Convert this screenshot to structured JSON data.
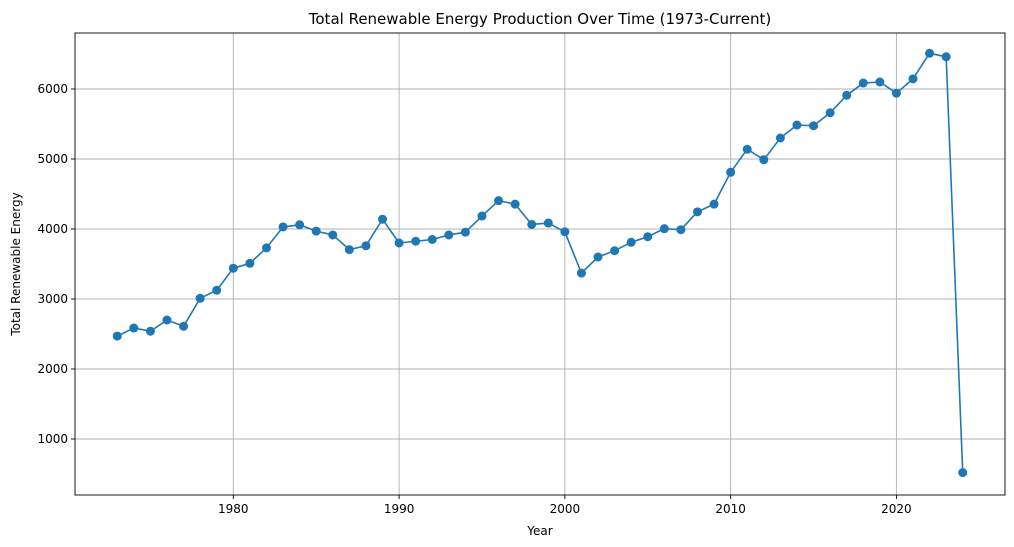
{
  "chart_data": {
    "type": "line",
    "title": "Total Renewable Energy Production Over Time (1973-Current)",
    "xlabel": "Year",
    "ylabel": "Total Renewable Energy",
    "xlim": [
      1970.45,
      2026.55
    ],
    "ylim": [
      200,
      6800
    ],
    "x_ticks": [
      1980,
      1990,
      2000,
      2010,
      2020
    ],
    "y_ticks": [
      1000,
      2000,
      3000,
      4000,
      5000,
      6000
    ],
    "grid": true,
    "color": "#1f77b4",
    "marker": "circle",
    "x": [
      1973,
      1974,
      1975,
      1976,
      1977,
      1978,
      1979,
      1980,
      1981,
      1982,
      1983,
      1984,
      1985,
      1986,
      1987,
      1988,
      1989,
      1990,
      1991,
      1992,
      1993,
      1994,
      1995,
      1996,
      1997,
      1998,
      1999,
      2000,
      2001,
      2002,
      2003,
      2004,
      2005,
      2006,
      2007,
      2008,
      2009,
      2010,
      2011,
      2012,
      2013,
      2014,
      2015,
      2016,
      2017,
      2018,
      2019,
      2020,
      2021,
      2022,
      2023,
      2024
    ],
    "values": [
      2470,
      2585,
      2540,
      2700,
      2610,
      3010,
      3125,
      3440,
      3510,
      3730,
      4030,
      4060,
      3970,
      3915,
      3705,
      3760,
      4140,
      3800,
      3825,
      3850,
      3915,
      3955,
      4185,
      4405,
      4355,
      4065,
      4085,
      3960,
      3370,
      3600,
      3690,
      3810,
      3890,
      4005,
      3990,
      4245,
      4355,
      4810,
      5140,
      4990,
      5300,
      5485,
      5475,
      5660,
      5910,
      6085,
      6100,
      5940,
      6145,
      6510,
      6460,
      520
    ]
  }
}
